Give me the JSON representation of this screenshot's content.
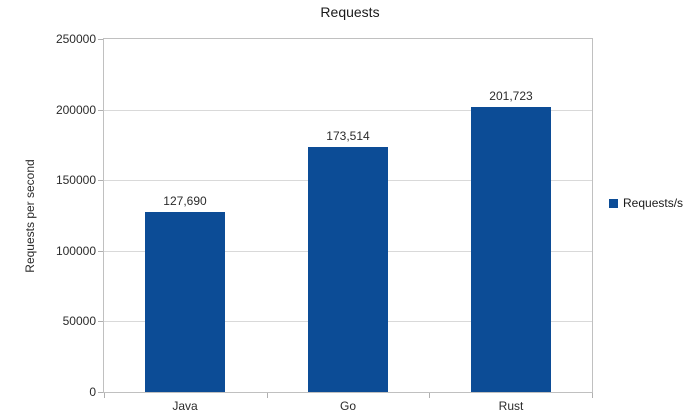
{
  "chart_data": {
    "type": "bar",
    "title": "Requests",
    "xlabel": "",
    "ylabel": "Requests per second",
    "categories": [
      "Java",
      "Go",
      "Rust"
    ],
    "series": [
      {
        "name": "Requests/s",
        "values": [
          127690,
          173514,
          201723
        ]
      }
    ],
    "value_labels": [
      "127,690",
      "173,514",
      "201,723"
    ],
    "ylim": [
      0,
      250000
    ],
    "ytick_values": [
      0,
      50000,
      100000,
      150000,
      200000,
      250000
    ],
    "ytick_labels": [
      "0",
      "50000",
      "100000",
      "150000",
      "200000",
      "250000"
    ],
    "grid": "horizontal",
    "legend_position": "right",
    "colors": {
      "bar": "#0c4c96",
      "grid": "#d9d9d9",
      "axis": "#c0c0c0",
      "text": "#2b2b2b",
      "title": "#1a1a1a",
      "background": "#ffffff"
    }
  }
}
